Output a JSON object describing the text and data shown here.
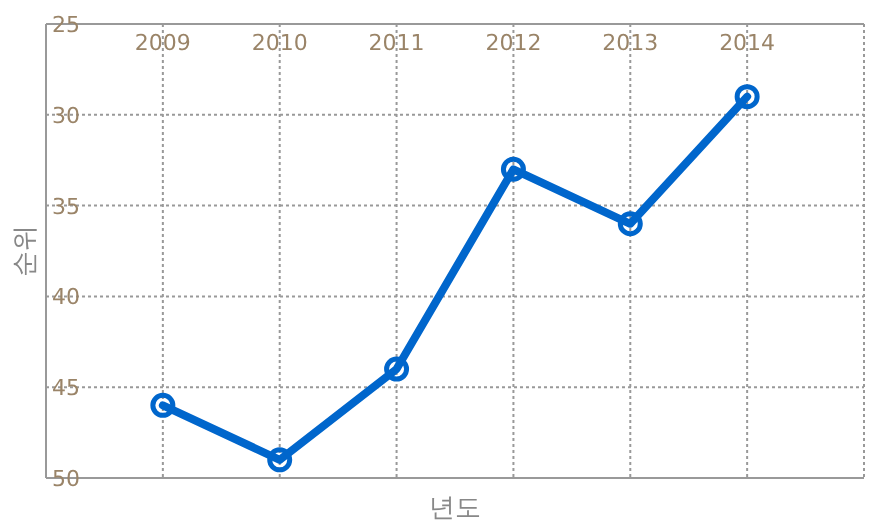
{
  "chart_data": {
    "type": "line",
    "xlabel": "년도",
    "ylabel": "순위",
    "x": [
      2009,
      2010,
      2011,
      2012,
      2013,
      2014
    ],
    "series": [
      {
        "color": "#0066cc",
        "values": [
          46,
          49,
          44,
          33,
          36,
          29
        ]
      }
    ],
    "xlim": [
      2008,
      2015
    ],
    "ylim": [
      50,
      25
    ],
    "xticks": [
      2009,
      2010,
      2011,
      2012,
      2013,
      2014
    ],
    "yticks": [
      25,
      30,
      35,
      40,
      45,
      50
    ],
    "grid": true,
    "marker": "circle",
    "line_style": "solid"
  }
}
